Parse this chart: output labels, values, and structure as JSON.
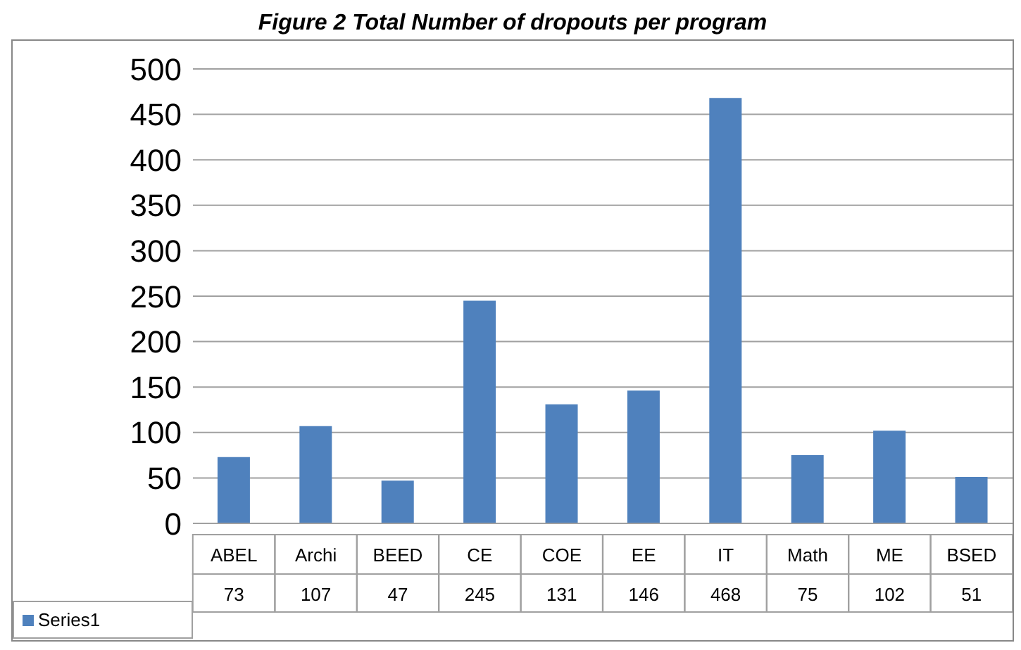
{
  "chart_data": {
    "type": "bar",
    "title": "Figure 2 Total Number of dropouts per program",
    "categories": [
      "ABEL",
      "Archi",
      "BEED",
      "CE",
      "COE",
      "EE",
      "IT",
      "Math",
      "ME",
      "BSED"
    ],
    "series": [
      {
        "name": "Series1",
        "color": "#4f81bd",
        "values": [
          73,
          107,
          47,
          245,
          131,
          146,
          468,
          75,
          102,
          51
        ]
      }
    ],
    "ylim": [
      0,
      500
    ],
    "yticks": [
      0,
      50,
      100,
      150,
      200,
      250,
      300,
      350,
      400,
      450,
      500
    ],
    "grid": "y",
    "legend": "bottom left",
    "data_labels": true
  }
}
